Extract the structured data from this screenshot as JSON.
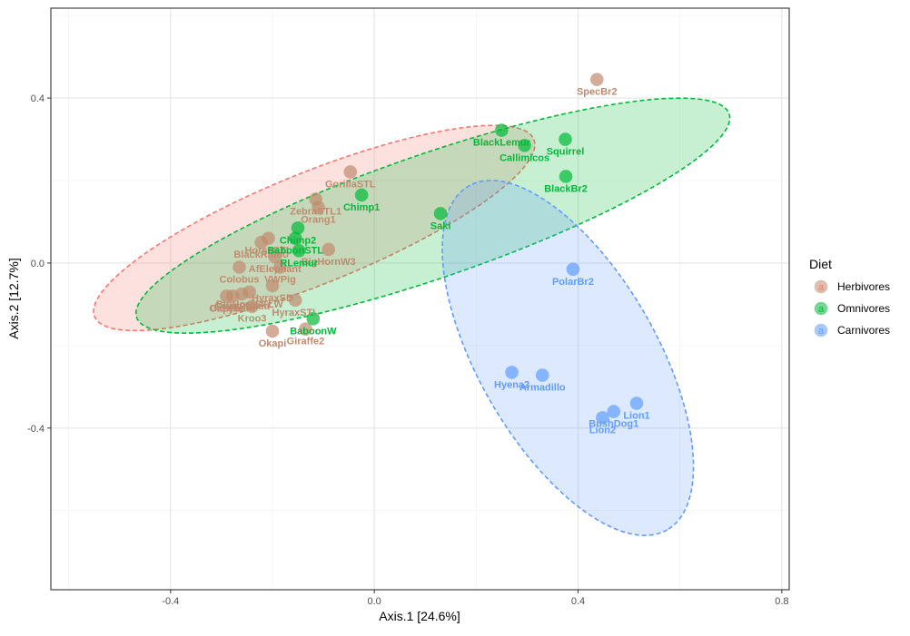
{
  "chart_data": {
    "type": "scatter",
    "xlabel": "Axis.1   [24.6%]",
    "ylabel": "Axis.2   [12.7%]",
    "xlim": [
      -0.635,
      0.8145
    ],
    "ylim": [
      -0.792,
      0.618
    ],
    "xticks": [
      -0.4,
      0.0,
      0.4,
      0.8
    ],
    "yticks": [
      -0.4,
      0.0,
      0.4
    ],
    "xtick_labels": [
      "-0.4",
      "0.0",
      "0.4",
      "0.8"
    ],
    "ytick_labels": [
      "-0.4",
      "0.0",
      "0.4"
    ],
    "grid": true,
    "legend": {
      "title": "Diet",
      "placement": "right",
      "glyph": "a",
      "entries": [
        "Herbivores",
        "Omnivores",
        "Carnivores"
      ]
    },
    "series": [
      {
        "name": "Herbivores",
        "color": "#F8766D",
        "point_color": "#C08A6E",
        "ellipse": {
          "cx": -0.118,
          "cy": 0.085,
          "rx": 0.465,
          "ry": 0.135,
          "angle_deg": 22
        },
        "points": [
          {
            "label": "SpecBr2",
            "x": 0.437,
            "y": 0.445
          },
          {
            "label": "GorillaSTL",
            "x": -0.047,
            "y": 0.221
          },
          {
            "label": "ZebraSTL1",
            "x": -0.115,
            "y": 0.155
          },
          {
            "label": "Orang1",
            "x": -0.11,
            "y": 0.135
          },
          {
            "label": "BigHornW3",
            "x": -0.09,
            "y": 0.033
          },
          {
            "label": "BlackRhino",
            "x": -0.222,
            "y": 0.05
          },
          {
            "label": "HorseSTL",
            "x": -0.208,
            "y": 0.06
          },
          {
            "label": "AfElephant",
            "x": -0.195,
            "y": 0.015
          },
          {
            "label": "VWPig",
            "x": -0.185,
            "y": -0.01
          },
          {
            "label": "Colobus",
            "x": -0.265,
            "y": -0.01
          },
          {
            "label": "HyraxSD",
            "x": -0.2,
            "y": -0.055
          },
          {
            "label": "BigHornSTLW",
            "x": -0.245,
            "y": -0.07
          },
          {
            "label": "GiantPanda",
            "x": -0.26,
            "y": -0.075
          },
          {
            "label": "Capybara",
            "x": -0.278,
            "y": -0.08
          },
          {
            "label": "Gazelle",
            "x": -0.29,
            "y": -0.08
          },
          {
            "label": "HyraxSTL",
            "x": -0.155,
            "y": -0.09
          },
          {
            "label": "Kroo3",
            "x": -0.24,
            "y": -0.105
          },
          {
            "label": "Okapi",
            "x": -0.2,
            "y": -0.165
          },
          {
            "label": "Giraffe2",
            "x": -0.135,
            "y": -0.16
          }
        ]
      },
      {
        "name": "Omnivores",
        "color": "#00BA38",
        "point_color": "#00BA38",
        "ellipse": {
          "cx": 0.115,
          "cy": 0.115,
          "rx": 0.615,
          "ry": 0.15,
          "angle_deg": 19
        },
        "points": [
          {
            "label": "BlackLemur",
            "x": 0.25,
            "y": 0.322
          },
          {
            "label": "Callimicos",
            "x": 0.295,
            "y": 0.285
          },
          {
            "label": "Squirrel",
            "x": 0.375,
            "y": 0.3
          },
          {
            "label": "BlackBr2",
            "x": 0.376,
            "y": 0.21
          },
          {
            "label": "Chimp1",
            "x": -0.025,
            "y": 0.165
          },
          {
            "label": "Saki",
            "x": 0.13,
            "y": 0.12
          },
          {
            "label": "Chimp2",
            "x": -0.15,
            "y": 0.085
          },
          {
            "label": "BaboonSTL",
            "x": -0.155,
            "y": 0.06
          },
          {
            "label": "RLemur",
            "x": -0.148,
            "y": 0.03
          },
          {
            "label": "BaboonW",
            "x": -0.12,
            "y": -0.135
          }
        ]
      },
      {
        "name": "Carnivores",
        "color": "#619CFF",
        "point_color": "#619CFF",
        "ellipse": {
          "cx": 0.38,
          "cy": -0.23,
          "rx": 0.39,
          "ry": 0.215,
          "angle_deg": -60
        },
        "points": [
          {
            "label": "PolarBr2",
            "x": 0.39,
            "y": -0.015
          },
          {
            "label": "Hyena2",
            "x": 0.27,
            "y": -0.265
          },
          {
            "label": "Armadillo",
            "x": 0.33,
            "y": -0.272
          },
          {
            "label": "Lion1",
            "x": 0.515,
            "y": -0.34
          },
          {
            "label": "BushDog1",
            "x": 0.47,
            "y": -0.36
          },
          {
            "label": "Lion2",
            "x": 0.448,
            "y": -0.375
          }
        ]
      }
    ]
  }
}
